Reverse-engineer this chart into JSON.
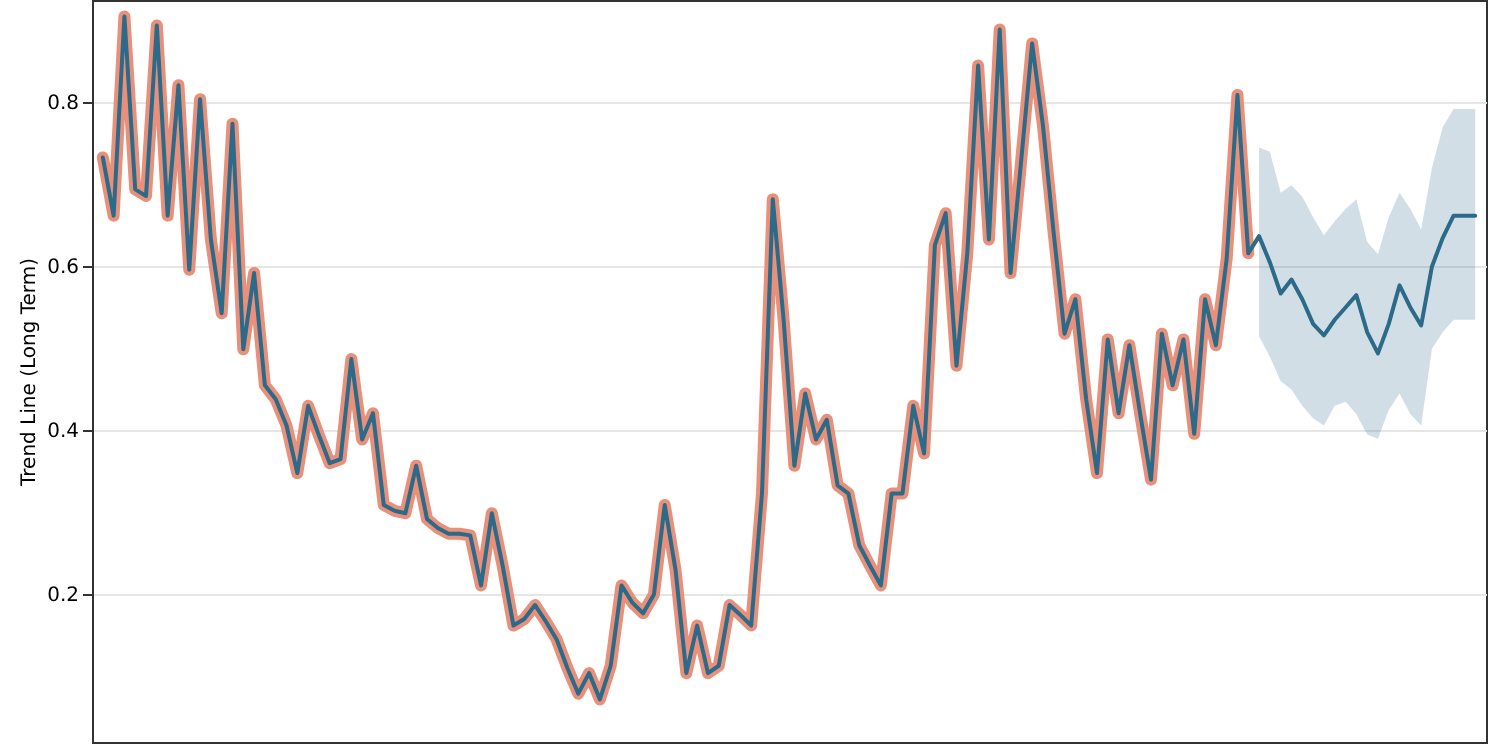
{
  "chart_data": {
    "type": "line",
    "ylabel": "Trend Line (Long Term)",
    "ylim": [
      0.02,
      0.925
    ],
    "yticks": [
      0.2,
      0.4,
      0.6,
      0.8
    ],
    "grid": "y",
    "tick_labels": "y",
    "marker": "none",
    "line_style": "solid",
    "categories": [
      null,
      null,
      null,
      null,
      null,
      null,
      null,
      null,
      null,
      null,
      null,
      null,
      null,
      null,
      null,
      null,
      null,
      null,
      null,
      null,
      null,
      null,
      null,
      null,
      null,
      null,
      null,
      null,
      null,
      null,
      null,
      null,
      null,
      null,
      null,
      null,
      null,
      null,
      null,
      null,
      null,
      null,
      null,
      null,
      null,
      null,
      null,
      null,
      null,
      null,
      null,
      null,
      null,
      null,
      null,
      null,
      null,
      null,
      null,
      null,
      null,
      null,
      null,
      null,
      null,
      null,
      null,
      null,
      null,
      null,
      null,
      null,
      null,
      null,
      null,
      null,
      null,
      null,
      null,
      null,
      null,
      null,
      null,
      null,
      null,
      null,
      null,
      null,
      null,
      null,
      null,
      null,
      null,
      null,
      null,
      null,
      null,
      null,
      null,
      null,
      null,
      null,
      null,
      null,
      null,
      null,
      null,
      null,
      null,
      null,
      null,
      null,
      null,
      null,
      null,
      null,
      null,
      null,
      null,
      null,
      null,
      null,
      null,
      null,
      null,
      null,
      null,
      null
    ],
    "series": [
      {
        "color": "#e8907a",
        "values": [
          0.733,
          0.662,
          0.905,
          0.694,
          0.686,
          0.894,
          0.662,
          0.821,
          0.596,
          0.804,
          0.633,
          0.543,
          0.774,
          0.499,
          0.592,
          0.455,
          0.438,
          0.406,
          0.348,
          0.43,
          0.394,
          0.36,
          0.365,
          0.487,
          0.389,
          0.421,
          0.309,
          0.302,
          0.299,
          0.357,
          0.292,
          0.281,
          0.274,
          0.274,
          0.272,
          0.211,
          0.299,
          0.235,
          0.162,
          0.17,
          0.187,
          0.167,
          0.145,
          0.11,
          0.079,
          0.104,
          0.072,
          0.113,
          0.211,
          0.19,
          0.177,
          0.2,
          0.309,
          0.23,
          0.104,
          0.162,
          0.104,
          0.113,
          0.187,
          0.175,
          0.162,
          0.323,
          0.682,
          0.535,
          0.357,
          0.445,
          0.389,
          0.413,
          0.333,
          0.323,
          0.26,
          0.235,
          0.211,
          0.323,
          0.323,
          0.43,
          0.372,
          0.626,
          0.665,
          0.479,
          0.616,
          0.845,
          0.633,
          0.889,
          0.592,
          0.731,
          0.872,
          0.772,
          0.64,
          0.518,
          0.56,
          0.438,
          0.348,
          0.511,
          0.421,
          0.504,
          0.42,
          0.34,
          0.518,
          0.455,
          0.511,
          0.396,
          0.56,
          0.504,
          0.609,
          0.809,
          0.616,
          null,
          null,
          null,
          null,
          null,
          null,
          null,
          null,
          null,
          null,
          null,
          null,
          null,
          null,
          null,
          null,
          null,
          null,
          null,
          null,
          null
        ]
      },
      {
        "color": "#2c6a8a",
        "values": [
          0.733,
          0.662,
          0.905,
          0.694,
          0.686,
          0.894,
          0.662,
          0.821,
          0.596,
          0.804,
          0.633,
          0.543,
          0.774,
          0.499,
          0.592,
          0.455,
          0.438,
          0.406,
          0.348,
          0.43,
          0.394,
          0.36,
          0.365,
          0.487,
          0.389,
          0.421,
          0.309,
          0.302,
          0.299,
          0.357,
          0.292,
          0.281,
          0.274,
          0.274,
          0.272,
          0.211,
          0.299,
          0.235,
          0.162,
          0.17,
          0.187,
          0.167,
          0.145,
          0.11,
          0.079,
          0.104,
          0.072,
          0.113,
          0.211,
          0.19,
          0.177,
          0.2,
          0.309,
          0.23,
          0.104,
          0.162,
          0.104,
          0.113,
          0.187,
          0.175,
          0.162,
          0.323,
          0.682,
          0.535,
          0.357,
          0.445,
          0.389,
          0.413,
          0.333,
          0.323,
          0.26,
          0.235,
          0.211,
          0.323,
          0.323,
          0.43,
          0.372,
          0.626,
          0.665,
          0.479,
          0.616,
          0.845,
          0.633,
          0.889,
          0.592,
          0.731,
          0.872,
          0.772,
          0.64,
          0.518,
          0.56,
          0.438,
          0.348,
          0.511,
          0.421,
          0.504,
          0.42,
          0.34,
          0.518,
          0.455,
          0.511,
          0.396,
          0.56,
          0.504,
          0.609,
          0.809,
          0.616,
          0.637,
          0.605,
          0.567,
          0.584,
          0.56,
          0.53,
          0.516,
          0.535,
          0.55,
          0.565,
          0.52,
          0.494,
          0.53,
          0.577,
          0.55,
          0.528,
          0.6,
          0.635,
          0.662,
          0.662,
          0.662
        ],
        "lower": [
          null,
          null,
          null,
          null,
          null,
          null,
          null,
          null,
          null,
          null,
          null,
          null,
          null,
          null,
          null,
          null,
          null,
          null,
          null,
          null,
          null,
          null,
          null,
          null,
          null,
          null,
          null,
          null,
          null,
          null,
          null,
          null,
          null,
          null,
          null,
          null,
          null,
          null,
          null,
          null,
          null,
          null,
          null,
          null,
          null,
          null,
          null,
          null,
          null,
          null,
          null,
          null,
          null,
          null,
          null,
          null,
          null,
          null,
          null,
          null,
          null,
          null,
          null,
          null,
          null,
          null,
          null,
          null,
          null,
          null,
          null,
          null,
          null,
          null,
          null,
          null,
          null,
          null,
          null,
          null,
          null,
          null,
          null,
          null,
          null,
          null,
          null,
          null,
          null,
          null,
          null,
          null,
          null,
          null,
          null,
          null,
          null,
          null,
          null,
          null,
          null,
          null,
          null,
          null,
          null,
          null,
          null,
          0.515,
          0.49,
          0.46,
          0.45,
          0.43,
          0.415,
          0.406,
          0.43,
          0.435,
          0.42,
          0.395,
          0.39,
          0.425,
          0.445,
          0.42,
          0.406,
          0.5,
          0.52,
          0.535,
          0.535,
          0.535
        ],
        "upper": [
          null,
          null,
          null,
          null,
          null,
          null,
          null,
          null,
          null,
          null,
          null,
          null,
          null,
          null,
          null,
          null,
          null,
          null,
          null,
          null,
          null,
          null,
          null,
          null,
          null,
          null,
          null,
          null,
          null,
          null,
          null,
          null,
          null,
          null,
          null,
          null,
          null,
          null,
          null,
          null,
          null,
          null,
          null,
          null,
          null,
          null,
          null,
          null,
          null,
          null,
          null,
          null,
          null,
          null,
          null,
          null,
          null,
          null,
          null,
          null,
          null,
          null,
          null,
          null,
          null,
          null,
          null,
          null,
          null,
          null,
          null,
          null,
          null,
          null,
          null,
          null,
          null,
          null,
          null,
          null,
          null,
          null,
          null,
          null,
          null,
          null,
          null,
          null,
          null,
          null,
          null,
          null,
          null,
          null,
          null,
          null,
          null,
          null,
          null,
          null,
          null,
          null,
          null,
          null,
          null,
          null,
          null,
          0.745,
          0.74,
          0.69,
          0.699,
          0.685,
          0.66,
          0.638,
          0.655,
          0.67,
          0.682,
          0.63,
          0.615,
          0.66,
          0.69,
          0.67,
          0.645,
          0.72,
          0.77,
          0.792,
          0.792,
          0.792
        ]
      }
    ]
  }
}
